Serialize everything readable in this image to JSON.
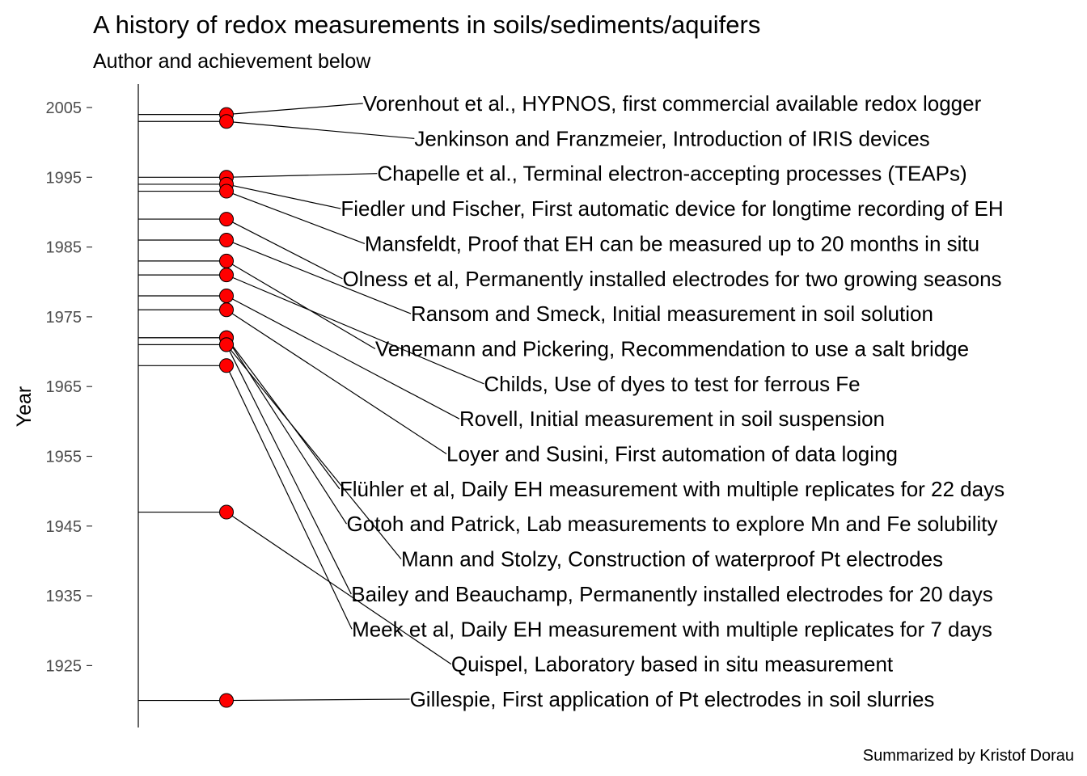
{
  "chart_data": {
    "type": "scatter",
    "title": "A history of redox measurements in soils/sediments/aquifers",
    "subtitle": "Author and achievement below",
    "ylabel": "Year",
    "xlabel": "",
    "caption": "Summarized by Kristof Dorau",
    "y_ticks": [
      1925,
      1935,
      1945,
      1955,
      1965,
      1975,
      1985,
      1995,
      2005
    ],
    "ylim": [
      1916,
      2008
    ],
    "grid": false,
    "marker_color": "#ff0000",
    "line_color": "#000000",
    "events": [
      {
        "year": 2004,
        "label": "Vorenhout et al., HYPNOS, first commercial available redox logger"
      },
      {
        "year": 2003,
        "label": "Jenkinson and Franzmeier, Introduction of IRIS devices"
      },
      {
        "year": 1995,
        "label": "Chapelle et al., Terminal electron-accepting processes (TEAPs)"
      },
      {
        "year": 1994,
        "label": "Fiedler und Fischer, First automatic device for longtime recording of EH"
      },
      {
        "year": 1993,
        "label": "Mansfeldt, Proof that EH can be measured up to 20 months in situ"
      },
      {
        "year": 1989,
        "label": "Olness et al, Permanently installed electrodes for two growing seasons"
      },
      {
        "year": 1986,
        "label": "Ransom and Smeck, Initial measurement in soil solution"
      },
      {
        "year": 1983,
        "label": "Venemann and Pickering, Recommendation to use a salt bridge"
      },
      {
        "year": 1981,
        "label": "Childs, Use of dyes to test for ferrous Fe"
      },
      {
        "year": 1978,
        "label": "Rovell, Initial measurement in soil suspension"
      },
      {
        "year": 1976,
        "label": "Loyer and Susini, First automation of data loging"
      },
      {
        "year": 1972,
        "label": "Flühler et al, Daily EH measurement with multiple replicates for 22 days"
      },
      {
        "year": 1972,
        "label": "Gotoh and Patrick, Lab measurements to explore Mn and Fe solubility"
      },
      {
        "year": 1971,
        "label": "Mann and Stolzy, Construction of waterproof Pt electrodes"
      },
      {
        "year": 1971,
        "label": "Bailey and Beauchamp, Permanently installed electrodes for 20 days"
      },
      {
        "year": 1968,
        "label": "Meek et al, Daily EH measurement with multiple replicates for 7 days"
      },
      {
        "year": 1947,
        "label": "Quispel, Laboratory based in situ measurement"
      },
      {
        "year": 1920,
        "label": "Gillespie, First application of Pt electrodes in soil slurries"
      }
    ]
  }
}
